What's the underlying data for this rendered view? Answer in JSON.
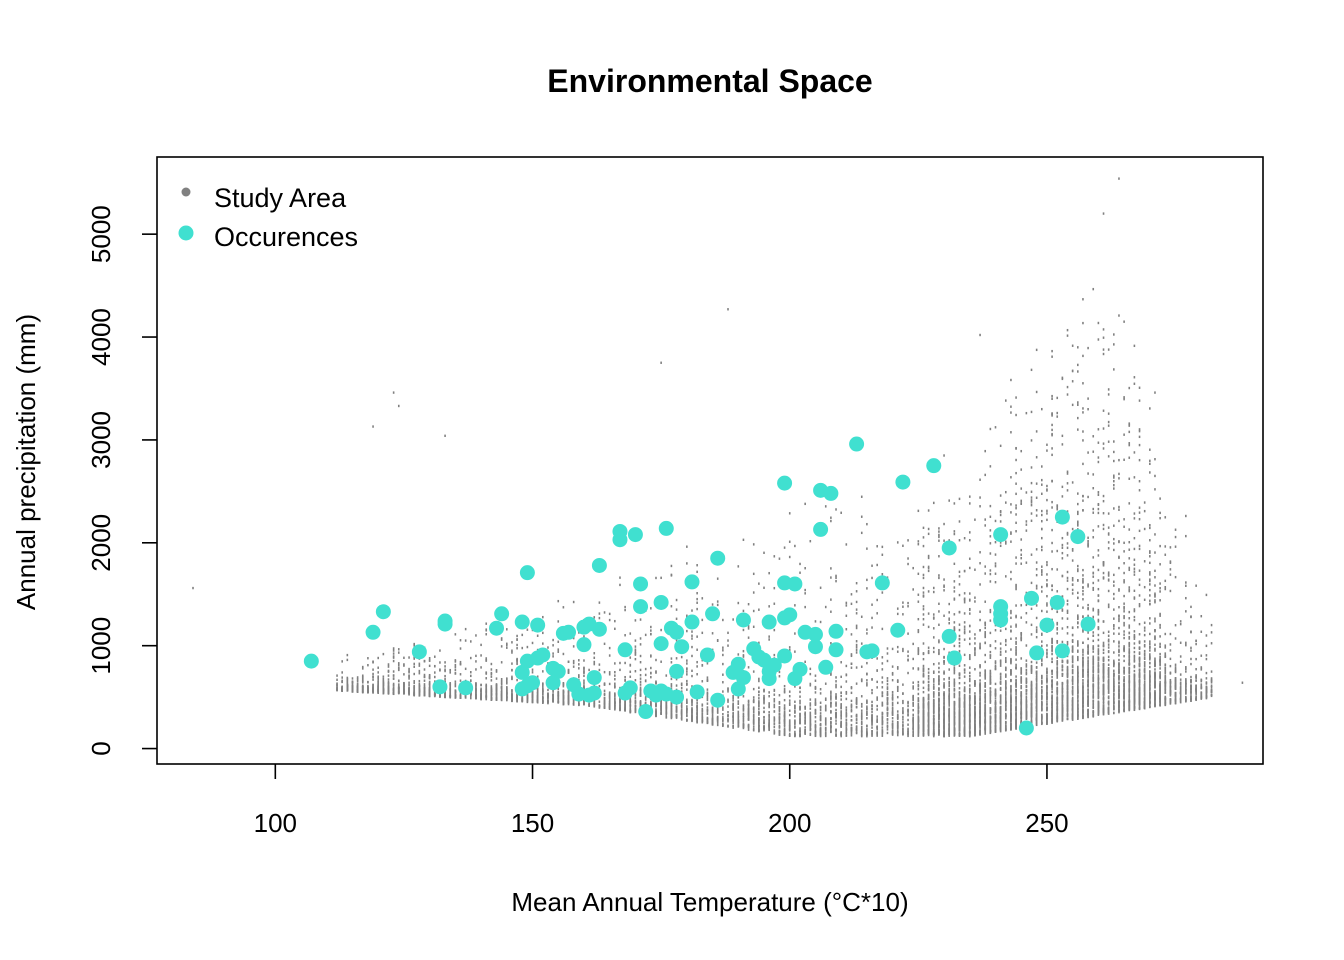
{
  "chart_data": {
    "type": "scatter",
    "title": "Environmental Space",
    "xlabel": "Mean Annual Temperature (°C*10)",
    "ylabel": "Annual precipitation (mm)",
    "xlim": [
      77,
      292
    ],
    "ylim": [
      -150,
      5750
    ],
    "xticks": [
      100,
      150,
      200,
      250
    ],
    "yticks": [
      0,
      1000,
      2000,
      3000,
      4000,
      5000
    ],
    "grid": false,
    "legend_position": "top-left",
    "colors": {
      "study_area": "#808080",
      "occurrences": "#40E0D0"
    },
    "series": [
      {
        "name": "Study Area",
        "style": "small-points",
        "color": "#808080",
        "density_model": "background cloud spanning x 84-288, precipitation floor near 80-700 mm rising to peaks near 5500 mm at x≈260",
        "sample_outliers": [
          [
            84,
            1560
          ],
          [
            119,
            3130
          ],
          [
            123,
            3460
          ],
          [
            124,
            3330
          ],
          [
            133,
            3040
          ],
          [
            175,
            3750
          ],
          [
            188,
            4270
          ],
          [
            237,
            4020
          ],
          [
            264,
            5540
          ],
          [
            261,
            5200
          ],
          [
            271,
            3460
          ],
          [
            282,
            1200
          ],
          [
            288,
            640
          ]
        ]
      },
      {
        "name": "Occurences",
        "style": "large-points",
        "color": "#40E0D0",
        "points": [
          [
            107,
            850
          ],
          [
            119,
            1130
          ],
          [
            121,
            1330
          ],
          [
            128,
            940
          ],
          [
            132,
            600
          ],
          [
            133,
            1210
          ],
          [
            133,
            1240
          ],
          [
            137,
            590
          ],
          [
            143,
            1170
          ],
          [
            144,
            1310
          ],
          [
            148,
            1230
          ],
          [
            148,
            740
          ],
          [
            148,
            580
          ],
          [
            149,
            850
          ],
          [
            149,
            610
          ],
          [
            149,
            1710
          ],
          [
            150,
            640
          ],
          [
            151,
            1200
          ],
          [
            151,
            880
          ],
          [
            152,
            910
          ],
          [
            154,
            780
          ],
          [
            154,
            640
          ],
          [
            155,
            750
          ],
          [
            156,
            1120
          ],
          [
            157,
            1130
          ],
          [
            158,
            620
          ],
          [
            159,
            530
          ],
          [
            160,
            1180
          ],
          [
            160,
            1010
          ],
          [
            161,
            1210
          ],
          [
            161,
            520
          ],
          [
            162,
            690
          ],
          [
            162,
            540
          ],
          [
            163,
            1160
          ],
          [
            163,
            1780
          ],
          [
            167,
            2110
          ],
          [
            167,
            2030
          ],
          [
            168,
            960
          ],
          [
            168,
            540
          ],
          [
            169,
            590
          ],
          [
            170,
            2080
          ],
          [
            171,
            1380
          ],
          [
            171,
            1600
          ],
          [
            172,
            360
          ],
          [
            173,
            560
          ],
          [
            174,
            520
          ],
          [
            175,
            560
          ],
          [
            175,
            1420
          ],
          [
            175,
            1020
          ],
          [
            176,
            2140
          ],
          [
            176,
            530
          ],
          [
            177,
            1170
          ],
          [
            178,
            500
          ],
          [
            178,
            750
          ],
          [
            178,
            1130
          ],
          [
            179,
            990
          ],
          [
            181,
            1620
          ],
          [
            181,
            1230
          ],
          [
            182,
            550
          ],
          [
            184,
            910
          ],
          [
            185,
            1310
          ],
          [
            186,
            470
          ],
          [
            186,
            1850
          ],
          [
            189,
            740
          ],
          [
            190,
            820
          ],
          [
            190,
            580
          ],
          [
            191,
            690
          ],
          [
            191,
            1250
          ],
          [
            193,
            970
          ],
          [
            194,
            890
          ],
          [
            195,
            860
          ],
          [
            196,
            680
          ],
          [
            196,
            750
          ],
          [
            197,
            810
          ],
          [
            196,
            1230
          ],
          [
            199,
            1610
          ],
          [
            199,
            900
          ],
          [
            199,
            1270
          ],
          [
            200,
            1300
          ],
          [
            199,
            2580
          ],
          [
            201,
            680
          ],
          [
            201,
            1600
          ],
          [
            202,
            770
          ],
          [
            203,
            1130
          ],
          [
            205,
            1110
          ],
          [
            205,
            990
          ],
          [
            206,
            2510
          ],
          [
            206,
            2130
          ],
          [
            207,
            790
          ],
          [
            208,
            2480
          ],
          [
            209,
            1140
          ],
          [
            209,
            960
          ],
          [
            213,
            2960
          ],
          [
            215,
            940
          ],
          [
            216,
            950
          ],
          [
            218,
            1610
          ],
          [
            221,
            1150
          ],
          [
            222,
            2590
          ],
          [
            228,
            2750
          ],
          [
            231,
            1950
          ],
          [
            231,
            1090
          ],
          [
            232,
            880
          ],
          [
            241,
            2080
          ],
          [
            241,
            1380
          ],
          [
            241,
            1310
          ],
          [
            241,
            1250
          ],
          [
            246,
            200
          ],
          [
            247,
            1460
          ],
          [
            248,
            930
          ],
          [
            250,
            1200
          ],
          [
            252,
            1420
          ],
          [
            253,
            2250
          ],
          [
            253,
            950
          ],
          [
            256,
            2060
          ],
          [
            258,
            1210
          ]
        ]
      }
    ]
  }
}
